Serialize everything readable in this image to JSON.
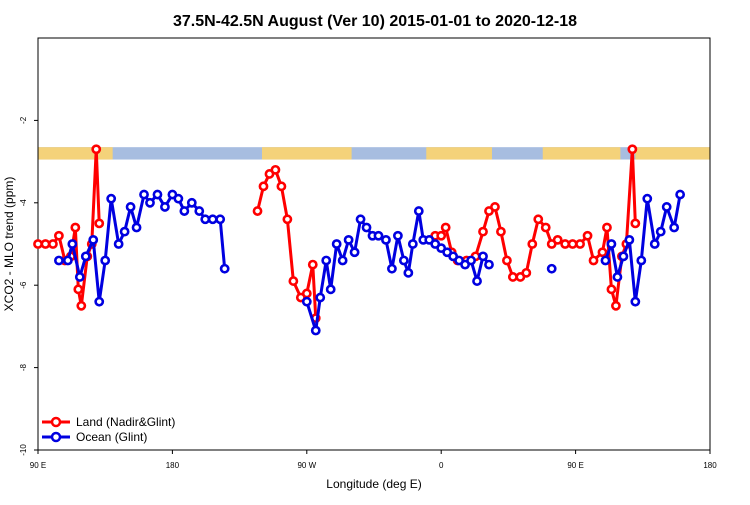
{
  "chart_data": {
    "type": "line",
    "title": "37.5N-42.5N August (Ver 10)   2015-01-01 to 2020-12-18",
    "xlabel": "Longitude (deg E)",
    "ylabel": "XCO2 - MLO trend (ppm)",
    "xlim": [
      90,
      540
    ],
    "ylim": [
      -10,
      0
    ],
    "x_ticks": [
      {
        "value": 90,
        "label": "90 E"
      },
      {
        "value": 180,
        "label": "180"
      },
      {
        "value": 270,
        "label": "90 W"
      },
      {
        "value": 360,
        "label": "0"
      },
      {
        "value": 450,
        "label": "90 E"
      },
      {
        "value": 540,
        "label": "180"
      }
    ],
    "y_ticks": [
      {
        "value": -10,
        "label": "-10"
      },
      {
        "value": -8,
        "label": "-8"
      },
      {
        "value": -6,
        "label": "-6"
      },
      {
        "value": -4,
        "label": "-4"
      },
      {
        "value": -2,
        "label": "-2"
      }
    ],
    "legend_position": "bottom-left",
    "map_strip": {
      "y_range": [
        -2.65,
        -2.95
      ],
      "land_color": "#f4d27a",
      "ocean_color": "#a7bde0",
      "land_spans": [
        [
          90,
          140
        ],
        [
          240,
          300
        ],
        [
          350,
          394
        ],
        [
          428,
          480
        ],
        [
          490,
          540
        ]
      ]
    },
    "series": [
      {
        "name": "Land (Nadir&Glint)",
        "color": "#ff0000",
        "segments": [
          [
            [
              90,
              -5.0
            ],
            [
              95,
              -5.0
            ],
            [
              100,
              -5.0
            ],
            [
              104,
              -4.8
            ],
            [
              108,
              -5.4
            ],
            [
              112,
              -5.3
            ],
            [
              115,
              -4.6
            ],
            [
              117,
              -6.1
            ],
            [
              119,
              -6.5
            ],
            [
              123,
              -5.3
            ],
            [
              126,
              -5.0
            ],
            [
              129,
              -2.7
            ],
            [
              131,
              -4.5
            ]
          ],
          [
            [
              237,
              -4.2
            ],
            [
              241,
              -3.6
            ],
            [
              245,
              -3.3
            ],
            [
              249,
              -3.2
            ],
            [
              253,
              -3.6
            ],
            [
              257,
              -4.4
            ],
            [
              261,
              -5.9
            ],
            [
              266,
              -6.3
            ],
            [
              270,
              -6.2
            ],
            [
              274,
              -5.5
            ],
            [
              276,
              -6.8
            ]
          ],
          [
            [
              356,
              -4.8
            ],
            [
              360,
              -4.8
            ],
            [
              363,
              -4.6
            ],
            [
              367,
              -5.2
            ],
            [
              371,
              -5.4
            ],
            [
              377,
              -5.4
            ],
            [
              383,
              -5.3
            ],
            [
              388,
              -4.7
            ],
            [
              392,
              -4.2
            ],
            [
              396,
              -4.1
            ],
            [
              400,
              -4.7
            ],
            [
              404,
              -5.4
            ],
            [
              408,
              -5.8
            ],
            [
              413,
              -5.8
            ],
            [
              417,
              -5.7
            ],
            [
              421,
              -5.0
            ],
            [
              425,
              -4.4
            ],
            [
              430,
              -4.6
            ],
            [
              434,
              -5.0
            ],
            [
              438,
              -4.9
            ],
            [
              443,
              -5.0
            ],
            [
              448,
              -5.0
            ],
            [
              453,
              -5.0
            ],
            [
              458,
              -4.8
            ],
            [
              462,
              -5.4
            ],
            [
              468,
              -5.2
            ],
            [
              471,
              -4.6
            ],
            [
              474,
              -6.1
            ],
            [
              477,
              -6.5
            ],
            [
              481,
              -5.3
            ],
            [
              484,
              -5.0
            ],
            [
              488,
              -2.7
            ],
            [
              490,
              -4.5
            ]
          ]
        ]
      },
      {
        "name": "Ocean (Glint)",
        "color": "#0000e0",
        "segments": [
          [
            [
              104,
              -5.4
            ],
            [
              110,
              -5.4
            ],
            [
              113,
              -5.0
            ],
            [
              118,
              -5.8
            ],
            [
              122,
              -5.3
            ],
            [
              127,
              -4.9
            ],
            [
              131,
              -6.4
            ],
            [
              135,
              -5.4
            ],
            [
              139,
              -3.9
            ],
            [
              144,
              -5.0
            ],
            [
              148,
              -4.7
            ],
            [
              152,
              -4.1
            ],
            [
              156,
              -4.6
            ],
            [
              161,
              -3.8
            ],
            [
              165,
              -4.0
            ],
            [
              170,
              -3.8
            ],
            [
              175,
              -4.1
            ],
            [
              180,
              -3.8
            ],
            [
              184,
              -3.9
            ],
            [
              188,
              -4.2
            ],
            [
              193,
              -4.0
            ],
            [
              198,
              -4.2
            ],
            [
              202,
              -4.4
            ],
            [
              207,
              -4.4
            ],
            [
              212,
              -4.4
            ],
            [
              215,
              -5.6
            ]
          ],
          [
            [
              270,
              -6.4
            ],
            [
              276,
              -7.1
            ],
            [
              279,
              -6.3
            ],
            [
              283,
              -5.4
            ],
            [
              286,
              -6.1
            ],
            [
              290,
              -5.0
            ],
            [
              294,
              -5.4
            ],
            [
              298,
              -4.9
            ],
            [
              302,
              -5.2
            ],
            [
              306,
              -4.4
            ],
            [
              310,
              -4.6
            ],
            [
              314,
              -4.8
            ],
            [
              318,
              -4.8
            ],
            [
              323,
              -4.9
            ],
            [
              327,
              -5.6
            ],
            [
              331,
              -4.8
            ],
            [
              335,
              -5.4
            ],
            [
              338,
              -5.7
            ],
            [
              341,
              -5.0
            ],
            [
              345,
              -4.2
            ],
            [
              348,
              -4.9
            ],
            [
              352,
              -4.9
            ],
            [
              356,
              -5.0
            ],
            [
              360,
              -5.1
            ],
            [
              364,
              -5.2
            ],
            [
              368,
              -5.3
            ],
            [
              372,
              -5.4
            ],
            [
              376,
              -5.5
            ],
            [
              380,
              -5.4
            ],
            [
              384,
              -5.9
            ],
            [
              388,
              -5.3
            ],
            [
              392,
              -5.5
            ]
          ],
          [
            [
              434,
              -5.6
            ]
          ],
          [
            [
              470,
              -5.4
            ],
            [
              474,
              -5.0
            ],
            [
              478,
              -5.8
            ],
            [
              482,
              -5.3
            ],
            [
              486,
              -4.9
            ],
            [
              490,
              -6.4
            ],
            [
              494,
              -5.4
            ],
            [
              498,
              -3.9
            ],
            [
              503,
              -5.0
            ],
            [
              507,
              -4.7
            ],
            [
              511,
              -4.1
            ],
            [
              516,
              -4.6
            ],
            [
              520,
              -3.8
            ]
          ]
        ]
      }
    ]
  }
}
